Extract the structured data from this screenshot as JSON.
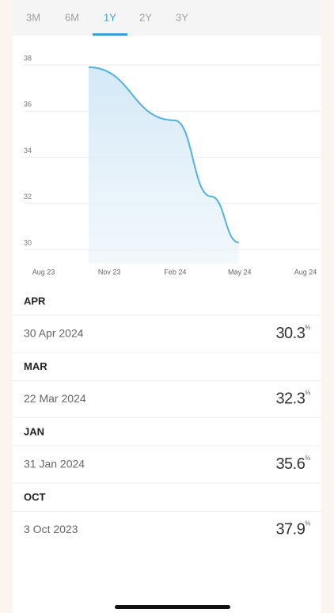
{
  "tabs": [
    "3M",
    "6M",
    "1Y",
    "2Y",
    "3Y"
  ],
  "active_tab": 2,
  "chart_data": {
    "type": "line",
    "x": [
      "2023-10-03",
      "2024-01-31",
      "2024-03-22",
      "2024-04-30"
    ],
    "series": [
      {
        "color": "#4fb3e3",
        "values": [
          37.9,
          35.6,
          32.3,
          30.3
        ]
      }
    ],
    "xlim": [
      "2023-08-01",
      "2024-08-01"
    ],
    "xticks": [
      {
        "value": "2023-08-01",
        "label": "Aug 23"
      },
      {
        "value": "2023-11-01",
        "label": "Nov 23"
      },
      {
        "value": "2024-02-01",
        "label": "Feb 24"
      },
      {
        "value": "2024-05-01",
        "label": "May 24"
      },
      {
        "value": "2024-08-01",
        "label": "Aug 24"
      }
    ],
    "ylim": [
      30,
      38
    ],
    "yticks": [
      30,
      32,
      34,
      36,
      38
    ],
    "grid": true
  },
  "list": [
    {
      "month": "APR",
      "date": "30 Apr 2024",
      "value": 30.3,
      "unit": "%"
    },
    {
      "month": "MAR",
      "date": "22 Mar 2024",
      "value": 32.3,
      "unit": "%"
    },
    {
      "month": "JAN",
      "date": "31 Jan 2024",
      "value": 35.6,
      "unit": "%"
    },
    {
      "month": "OCT",
      "date": "3 Oct 2023",
      "value": 37.9,
      "unit": "%"
    }
  ]
}
